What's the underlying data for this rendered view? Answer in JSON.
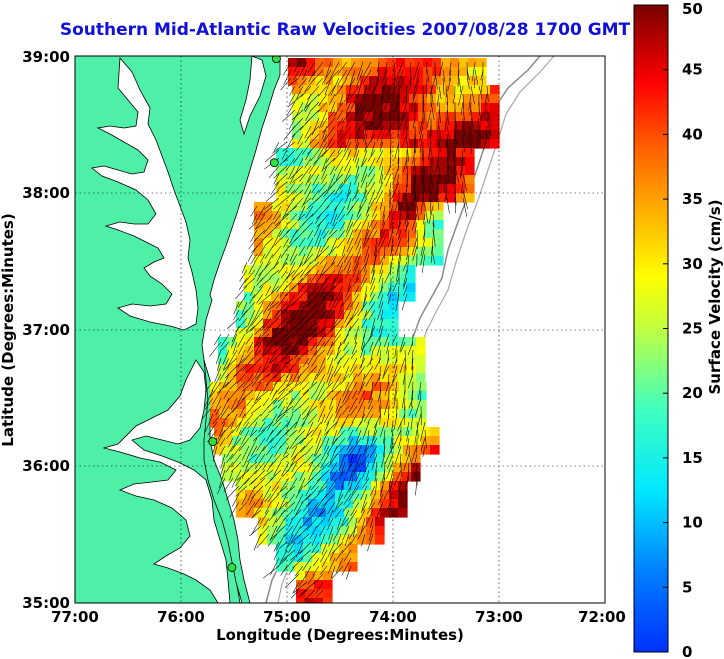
{
  "title": "Southern Mid-Atlantic Raw Velocities 2007/08/28 1700 GMT",
  "map": {
    "xlabel": "Longitude (Degrees:Minutes)",
    "ylabel": "Latitude (Degrees:Minutes)",
    "x_ticks": [
      "77:00",
      "76:00",
      "75:00",
      "74:00",
      "73:00",
      "72:00"
    ],
    "y_ticks": [
      "35:00",
      "36:00",
      "37:00",
      "38:00",
      "39:00"
    ],
    "lon_range": [
      -77,
      -72
    ],
    "lat_range": [
      35,
      39
    ],
    "grid": true,
    "land_color": "#4ef0a8",
    "coast_color": "#000000",
    "radar_sites": [
      {
        "lon": -75.1,
        "lat": 38.98
      },
      {
        "lon": -75.12,
        "lat": 38.22
      },
      {
        "lon": -75.7,
        "lat": 36.18
      },
      {
        "lon": -75.52,
        "lat": 35.26
      }
    ]
  },
  "colorbar": {
    "label": "Surface Velocity (cm/s)",
    "ticks": [
      "0",
      "5",
      "10",
      "15",
      "20",
      "25",
      "30",
      "35",
      "40",
      "45",
      "50"
    ],
    "min": 0,
    "max": 50
  }
}
